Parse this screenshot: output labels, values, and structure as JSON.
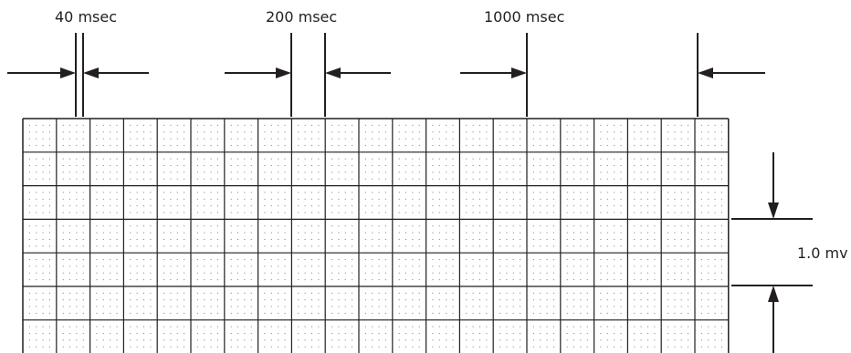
{
  "labels": {
    "interval_small": "40 msec",
    "interval_medium": "200 msec",
    "interval_large": "1000 msec",
    "amplitude": "1.0 mv"
  },
  "grid": {
    "large_box_columns": 21,
    "large_box_rows": 7,
    "small_squares_per_large_box": 5
  },
  "colors": {
    "ink": "#231f20",
    "background": "#ffffff"
  }
}
